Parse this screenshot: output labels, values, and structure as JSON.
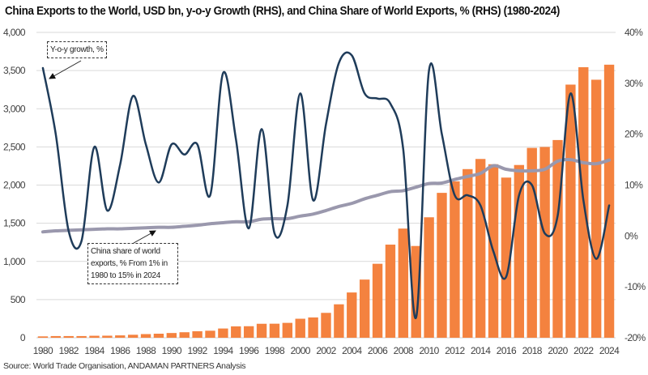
{
  "chart_data": {
    "type": "bar",
    "title": "China Exports to the World, USD bn, y-o-y Growth (RHS), and China Share of World Exports, % (RHS) (1980-2024)",
    "source": "Source: World Trade Organisation, ANDAMAN PARTNERS Analysis",
    "xlabel": "",
    "ylabel": "",
    "ylim": [
      0,
      4000
    ],
    "y2lim": [
      -20,
      40
    ],
    "grid": true,
    "categories": [
      1980,
      1981,
      1982,
      1983,
      1984,
      1985,
      1986,
      1987,
      1988,
      1989,
      1990,
      1991,
      1992,
      1993,
      1994,
      1995,
      1996,
      1997,
      1998,
      1999,
      2000,
      2001,
      2002,
      2003,
      2004,
      2005,
      2006,
      2007,
      2008,
      2009,
      2010,
      2011,
      2012,
      2013,
      2014,
      2015,
      2016,
      2017,
      2018,
      2019,
      2020,
      2021,
      2022,
      2023,
      2024
    ],
    "x_tick_labels": [
      "1980",
      "1982",
      "1984",
      "1986",
      "1988",
      "1990",
      "1992",
      "1994",
      "1996",
      "1998",
      "2000",
      "2002",
      "2004",
      "2006",
      "2008",
      "2010",
      "2012",
      "2014",
      "2016",
      "2018",
      "2020",
      "2022",
      "2024"
    ],
    "y_tick_labels": [
      "0",
      "500",
      "1,000",
      "1,500",
      "2,000",
      "2,500",
      "3,000",
      "3,500",
      "4,000"
    ],
    "y_tick_values": [
      0,
      500,
      1000,
      1500,
      2000,
      2500,
      3000,
      3500,
      4000
    ],
    "y2_tick_labels": [
      "-20%",
      "-10%",
      "0%",
      "10%",
      "20%",
      "30%",
      "40%"
    ],
    "y2_tick_values": [
      -20,
      -10,
      0,
      10,
      20,
      30,
      40
    ],
    "series": [
      {
        "name": "China exports to the world, USD bn",
        "type": "bar",
        "axis": "left",
        "color": "#F4823F",
        "values": [
          18,
          22,
          22,
          22,
          26,
          27,
          31,
          39,
          48,
          53,
          62,
          72,
          85,
          92,
          121,
          149,
          151,
          183,
          184,
          195,
          249,
          266,
          326,
          438,
          593,
          762,
          969,
          1220,
          1430,
          1202,
          1578,
          1898,
          2049,
          2209,
          2342,
          2273,
          2098,
          2263,
          2487,
          2499,
          2590,
          3316,
          3544,
          3380,
          3577
        ]
      },
      {
        "name": "Y-o-y growth, %",
        "type": "line",
        "axis": "right",
        "color": "#1F3C5A",
        "values": [
          33,
          20,
          1,
          -1,
          17.5,
          5,
          14,
          27.5,
          18,
          10.5,
          18,
          16,
          18,
          8,
          32,
          19,
          1.5,
          21,
          0.5,
          6,
          28,
          7,
          22,
          34,
          35.5,
          28,
          27,
          26,
          17,
          -16,
          32.5,
          20,
          8,
          8,
          6,
          -3,
          -8,
          8,
          10,
          0.5,
          4,
          28,
          7,
          -4.5,
          6
        ]
      },
      {
        "name": "China share of world exports, %",
        "type": "line",
        "axis": "right",
        "color": "#9A98AD",
        "values": [
          0.8,
          1.0,
          1.1,
          1.2,
          1.3,
          1.4,
          1.4,
          1.5,
          1.6,
          1.7,
          1.7,
          1.9,
          2.1,
          2.4,
          2.6,
          2.8,
          2.8,
          3.3,
          3.4,
          3.4,
          3.9,
          4.3,
          5.0,
          5.8,
          6.4,
          7.3,
          8.0,
          8.7,
          8.9,
          9.6,
          10.3,
          10.4,
          11.1,
          11.7,
          12.3,
          13.8,
          13.1,
          12.8,
          12.8,
          13.1,
          14.7,
          15.0,
          14.4,
          14.2,
          14.9
        ]
      }
    ],
    "annotations": [
      {
        "text": "Y-o-y growth, %",
        "target_series": "Y-o-y growth, %",
        "target_year": 1980
      },
      {
        "text": "China share of world exports, % From 1% in 1980 to 15% in 2024",
        "target_series": "China share of world exports, %",
        "target_year": 1989
      }
    ]
  }
}
